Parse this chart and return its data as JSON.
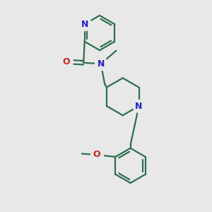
{
  "bg_color": "#e8e8e8",
  "bond_color": "#2d6e4e",
  "atom_color_N": "#2020cc",
  "atom_color_O": "#cc2020",
  "line_width": 1.6,
  "fig_size": [
    3.0,
    3.0
  ],
  "dpi": 100,
  "xlim": [
    0,
    10
  ],
  "ylim": [
    0,
    10
  ]
}
